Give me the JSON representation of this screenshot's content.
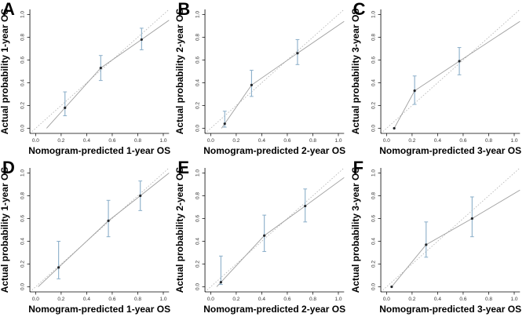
{
  "figure": {
    "background": "#ffffff",
    "colors": {
      "error_bar": "#8aaec9",
      "point": "#24272b",
      "ideal_line": "#b3b3b3",
      "calibration_line": "#9e9e9e",
      "axis": "#000000",
      "tick_text": "#333333",
      "label_text": "#000000"
    }
  },
  "chart_data": [
    {
      "type": "scatter",
      "title": "A",
      "xlabel": "Nomogram-predicted 1-year OS",
      "ylabel": "Actual probability 1-year OS",
      "xlim": [
        0,
        1
      ],
      "ylim": [
        0,
        1
      ],
      "ticks": [
        0,
        0.2,
        0.4,
        0.6,
        0.8,
        1.0
      ],
      "tick_labels": [
        "0.0",
        "0.2",
        "0.4",
        "0.6",
        "0.8",
        "1.0"
      ],
      "points": {
        "x": [
          0.23,
          0.51,
          0.83
        ],
        "y": [
          0.18,
          0.53,
          0.78
        ],
        "ci_low": [
          0.11,
          0.42,
          0.69
        ],
        "ci_high": [
          0.32,
          0.64,
          0.88
        ]
      },
      "calibration_line": [
        [
          0.086,
          0
        ],
        [
          0.23,
          0.18
        ],
        [
          0.51,
          0.53
        ],
        [
          0.83,
          0.78
        ],
        [
          1.045,
          0.95
        ]
      ],
      "ideal_line": [
        [
          0,
          0
        ],
        [
          1,
          1
        ]
      ]
    },
    {
      "type": "scatter",
      "title": "B",
      "xlabel": "Nomogram-predicted 2-year OS",
      "ylabel": "Actual probability 2-year OS",
      "xlim": [
        0,
        1
      ],
      "ylim": [
        0,
        1
      ],
      "ticks": [
        0,
        0.2,
        0.4,
        0.6,
        0.8,
        1.0
      ],
      "tick_labels": [
        "0.0",
        "0.2",
        "0.4",
        "0.6",
        "0.8",
        "1.0"
      ],
      "points": {
        "x": [
          0.11,
          0.32,
          0.68
        ],
        "y": [
          0.04,
          0.38,
          0.66
        ],
        "ci_low": [
          0.01,
          0.28,
          0.56
        ],
        "ci_high": [
          0.15,
          0.51,
          0.78
        ]
      },
      "calibration_line": [
        [
          0.085,
          0
        ],
        [
          0.11,
          0.04
        ],
        [
          0.32,
          0.38
        ],
        [
          0.68,
          0.66
        ],
        [
          1.045,
          0.94
        ]
      ],
      "ideal_line": [
        [
          0,
          0
        ],
        [
          1,
          1
        ]
      ]
    },
    {
      "type": "scatter",
      "title": "C",
      "xlabel": "Nomogram-predicted 3-year OS",
      "ylabel": "Actual probability 3-year OS",
      "xlim": [
        0,
        1
      ],
      "ylim": [
        0,
        1
      ],
      "ticks": [
        0,
        0.2,
        0.4,
        0.6,
        0.8,
        1.0
      ],
      "tick_labels": [
        "0.0",
        "0.2",
        "0.4",
        "0.6",
        "0.8",
        "1.0"
      ],
      "points": {
        "x": [
          0.06,
          0.22,
          0.57
        ],
        "y": [
          0.0,
          0.33,
          0.59
        ],
        "ci_low": [
          null,
          0.21,
          0.47
        ],
        "ci_high": [
          null,
          0.46,
          0.71
        ]
      },
      "calibration_line": [
        [
          0.06,
          0
        ],
        [
          0.22,
          0.33
        ],
        [
          0.57,
          0.59
        ],
        [
          1.045,
          0.94
        ]
      ],
      "ideal_line": [
        [
          0,
          0
        ],
        [
          1,
          1
        ]
      ]
    },
    {
      "type": "scatter",
      "title": "D",
      "xlabel": "Nomogram-predicted 1-year OS",
      "ylabel": "Actual probability 1-year OS",
      "xlim": [
        0,
        1
      ],
      "ylim": [
        0,
        1
      ],
      "ticks": [
        0,
        0.2,
        0.4,
        0.6,
        0.8,
        1.0
      ],
      "tick_labels": [
        "0.0",
        "0.2",
        "0.4",
        "0.6",
        "0.8",
        "1.0"
      ],
      "points": {
        "x": [
          0.18,
          0.57,
          0.82
        ],
        "y": [
          0.17,
          0.58,
          0.8
        ],
        "ci_low": [
          0.07,
          0.44,
          0.67
        ],
        "ci_high": [
          0.4,
          0.76,
          0.93
        ]
      },
      "calibration_line": [
        [
          0.02,
          0
        ],
        [
          0.18,
          0.17
        ],
        [
          0.57,
          0.58
        ],
        [
          0.82,
          0.8
        ],
        [
          1.045,
          1.0
        ]
      ],
      "ideal_line": [
        [
          0,
          0
        ],
        [
          1,
          1
        ]
      ]
    },
    {
      "type": "scatter",
      "title": "E",
      "xlabel": "Nomogram-predicted 2-year OS",
      "ylabel": "Actual probability 2-year OS",
      "xlim": [
        0,
        1
      ],
      "ylim": [
        0,
        1
      ],
      "ticks": [
        0,
        0.2,
        0.4,
        0.6,
        0.8,
        1.0
      ],
      "tick_labels": [
        "0.0",
        "0.2",
        "0.4",
        "0.6",
        "0.8",
        "1.0"
      ],
      "points": {
        "x": [
          0.08,
          0.42,
          0.74
        ],
        "y": [
          0.04,
          0.45,
          0.71
        ],
        "ci_low": [
          0.02,
          0.31,
          0.57
        ],
        "ci_high": [
          0.27,
          0.63,
          0.86
        ]
      },
      "calibration_line": [
        [
          0.047,
          0
        ],
        [
          0.08,
          0.04
        ],
        [
          0.42,
          0.45
        ],
        [
          0.74,
          0.71
        ],
        [
          1.045,
          0.96
        ]
      ],
      "ideal_line": [
        [
          0,
          0
        ],
        [
          1,
          1
        ]
      ]
    },
    {
      "type": "scatter",
      "title": "F",
      "xlabel": "Nomogram-predicted 3-year OS",
      "ylabel": "Actual probability 3-year OS",
      "xlim": [
        0,
        1
      ],
      "ylim": [
        0,
        1
      ],
      "ticks": [
        0,
        0.2,
        0.4,
        0.6,
        0.8,
        1.0
      ],
      "tick_labels": [
        "0.0",
        "0.2",
        "0.4",
        "0.6",
        "0.8",
        "1.0"
      ],
      "points": {
        "x": [
          0.04,
          0.31,
          0.67
        ],
        "y": [
          0.0,
          0.37,
          0.6
        ],
        "ci_low": [
          null,
          0.26,
          0.44
        ],
        "ci_high": [
          null,
          0.57,
          0.79
        ]
      },
      "calibration_line": [
        [
          0.04,
          0
        ],
        [
          0.31,
          0.37
        ],
        [
          0.67,
          0.6
        ],
        [
          1.045,
          0.85
        ]
      ],
      "ideal_line": [
        [
          0,
          0
        ],
        [
          1,
          1
        ]
      ]
    }
  ]
}
